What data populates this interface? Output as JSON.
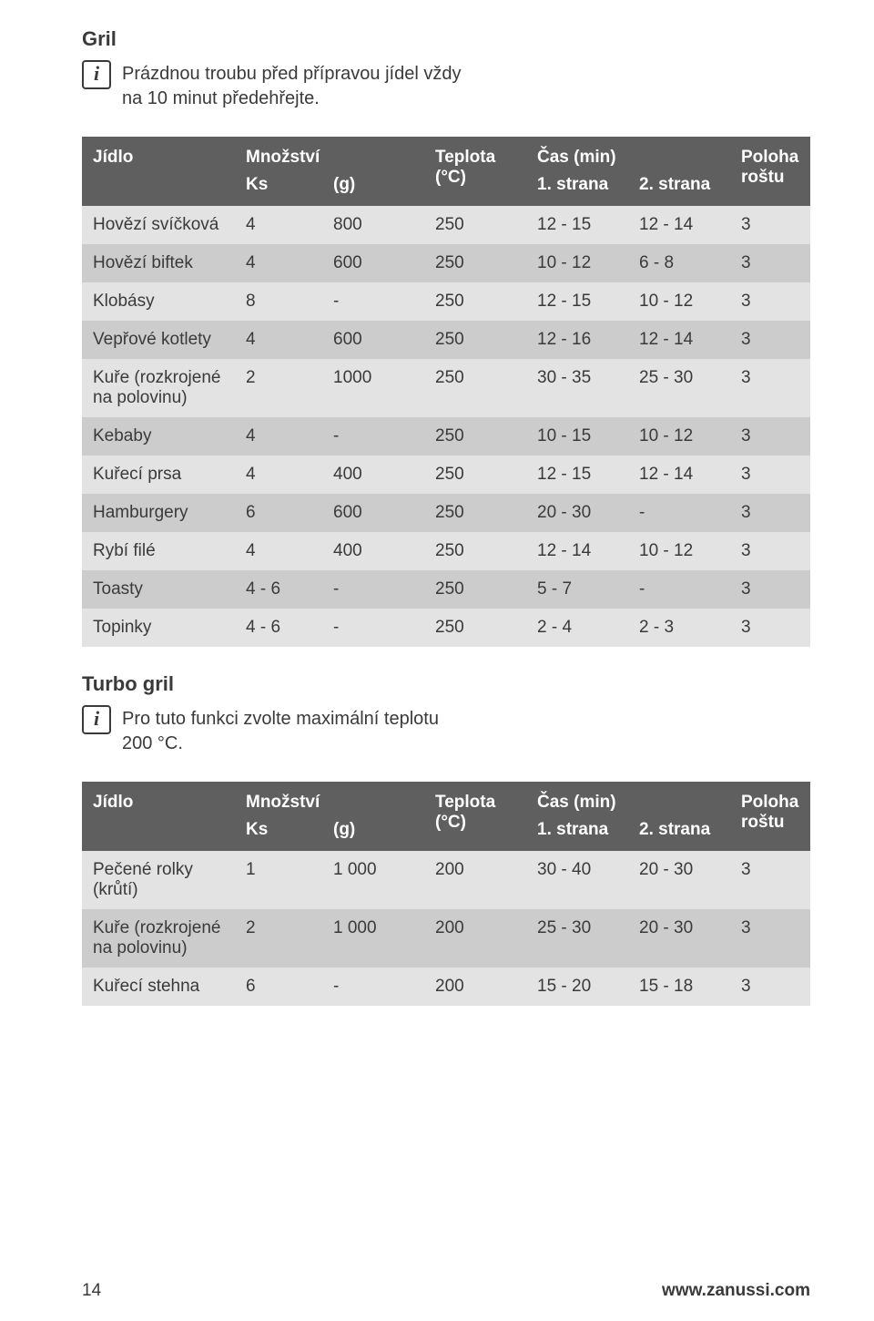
{
  "section1_title": "Gril",
  "info1": "Prázdnou troubu před přípravou jídel vždy na 10 minut předehřejte.",
  "info_icon_glyph": "i",
  "section2_title": "Turbo gril",
  "info2": "Pro tuto funkci zvolte maximální teplotu 200 °C.",
  "footer_page": "14",
  "footer_url": "www.zanussi.com",
  "table_headers": {
    "food": "Jídlo",
    "qty": "Množství",
    "ks": "Ks",
    "g": "(g)",
    "temp": "Teplota (°C)",
    "time": "Čas (min)",
    "t1": "1. strana",
    "t2": "2. strana",
    "pos": "Poloha roštu"
  },
  "table1_rows": [
    {
      "food": "Hovězí svíčková",
      "ks": "4",
      "g": "800",
      "temp": "250",
      "t1": "12 - 15",
      "t2": "12 - 14",
      "pos": "3"
    },
    {
      "food": "Hovězí biftek",
      "ks": "4",
      "g": "600",
      "temp": "250",
      "t1": "10 - 12",
      "t2": "6 - 8",
      "pos": "3"
    },
    {
      "food": "Klobásy",
      "ks": "8",
      "g": "-",
      "temp": "250",
      "t1": "12 - 15",
      "t2": "10 - 12",
      "pos": "3"
    },
    {
      "food": "Vepřové kotlety",
      "ks": "4",
      "g": "600",
      "temp": "250",
      "t1": "12 - 16",
      "t2": "12 - 14",
      "pos": "3"
    },
    {
      "food": "Kuře (rozkrojené na polovinu)",
      "ks": "2",
      "g": "1000",
      "temp": "250",
      "t1": "30 - 35",
      "t2": "25 - 30",
      "pos": "3"
    },
    {
      "food": "Kebaby",
      "ks": "4",
      "g": "-",
      "temp": "250",
      "t1": "10 - 15",
      "t2": "10 - 12",
      "pos": "3"
    },
    {
      "food": "Kuřecí prsa",
      "ks": "4",
      "g": "400",
      "temp": "250",
      "t1": "12 - 15",
      "t2": "12 - 14",
      "pos": "3"
    },
    {
      "food": "Hamburgery",
      "ks": "6",
      "g": "600",
      "temp": "250",
      "t1": "20 - 30",
      "t2": "-",
      "pos": "3"
    },
    {
      "food": "Rybí filé",
      "ks": "4",
      "g": "400",
      "temp": "250",
      "t1": "12 - 14",
      "t2": "10 - 12",
      "pos": "3"
    },
    {
      "food": "Toasty",
      "ks": "4 - 6",
      "g": "-",
      "temp": "250",
      "t1": "5 - 7",
      "t2": "-",
      "pos": "3"
    },
    {
      "food": "Topinky",
      "ks": "4 - 6",
      "g": "-",
      "temp": "250",
      "t1": "2 - 4",
      "t2": "2 - 3",
      "pos": "3"
    }
  ],
  "table2_rows": [
    {
      "food": "Pečené rolky (krůtí)",
      "ks": "1",
      "g": "1 000",
      "temp": "200",
      "t1": "30 - 40",
      "t2": "20 - 30",
      "pos": "3"
    },
    {
      "food": "Kuře (rozkrojené na polovinu)",
      "ks": "2",
      "g": "1 000",
      "temp": "200",
      "t1": "25 - 30",
      "t2": "20 - 30",
      "pos": "3"
    },
    {
      "food": "Kuřecí stehna",
      "ks": "6",
      "g": "-",
      "temp": "200",
      "t1": "15 - 20",
      "t2": "15 - 18",
      "pos": "3"
    }
  ]
}
